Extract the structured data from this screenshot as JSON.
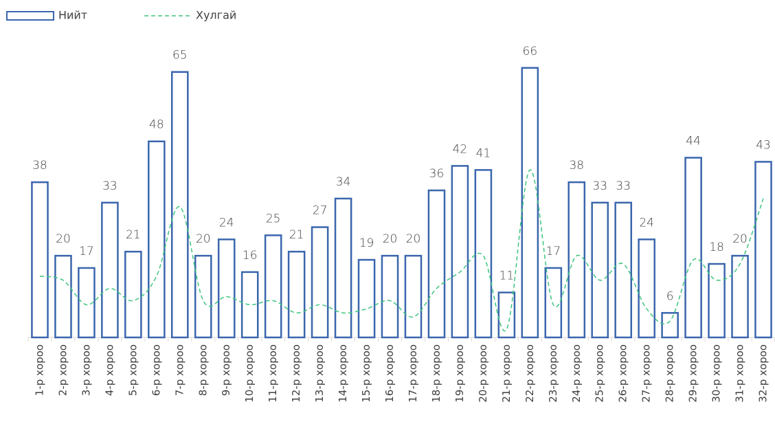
{
  "chart_data": {
    "type": "bar",
    "categories": [
      "1-р хороо",
      "2-р хороо",
      "3-р хороо",
      "4-р хороо",
      "5-р хороо",
      "6-р хороо",
      "7-р хороо",
      "8-р хороо",
      "9-р хороо",
      "10-р хороо",
      "11-р хороо",
      "12-р хороо",
      "13-р хороо",
      "14-р хороо",
      "15-р хороо",
      "16-р хороо",
      "17-р хороо",
      "18-р хороо",
      "19-р хороо",
      "20-р хороо",
      "21-р хороо",
      "22-р хороо",
      "23-р хороо",
      "24-р хороо",
      "25-р хороо",
      "26-р хороо",
      "27-р хороо",
      "28-р хороо",
      "29-р хороо",
      "30-р хороо",
      "31-р хороо",
      "32-р хороо"
    ],
    "series": [
      {
        "name": "Нийт",
        "type": "bar",
        "color": "#3a66ad",
        "values": [
          38,
          20,
          17,
          33,
          21,
          48,
          65,
          20,
          24,
          16,
          25,
          21,
          27,
          34,
          19,
          20,
          20,
          36,
          42,
          41,
          11,
          66,
          17,
          38,
          33,
          33,
          24,
          6,
          44,
          18,
          20,
          43
        ]
      },
      {
        "name": "Хулгай",
        "type": "line",
        "color": "#3cc47c",
        "values": [
          15,
          14,
          8,
          12,
          9,
          15,
          32,
          9,
          10,
          8,
          9,
          6,
          8,
          6,
          7,
          9,
          5,
          12,
          16,
          20,
          2,
          41,
          8,
          20,
          14,
          18,
          7,
          4,
          19,
          14,
          18,
          34
        ]
      }
    ],
    "ylim": [
      0,
      70
    ],
    "legend": "top-left"
  }
}
